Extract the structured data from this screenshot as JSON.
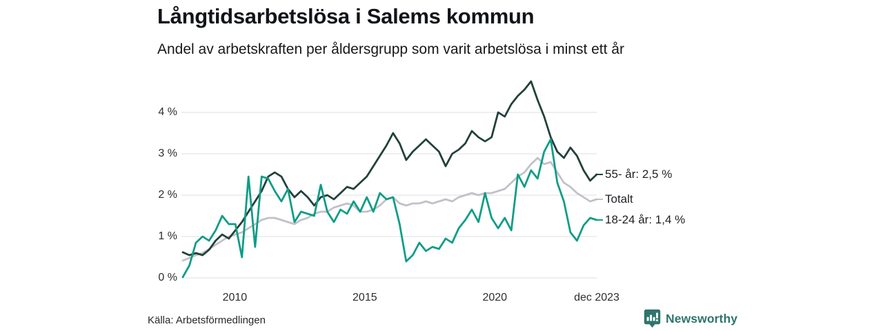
{
  "header": {
    "title": "Långtidsarbetslösa i Salems kommun",
    "subtitle": "Andel av arbetskraften per åldersgrupp som varit arbetslösa i minst ett år"
  },
  "footer": {
    "source": "Källa: Arbetsförmedlingen",
    "brand": "Newsworthy",
    "brand_color": "#2e756c"
  },
  "colors": {
    "background": "#ffffff",
    "grid": "#e5e3e8",
    "title_text": "#111418",
    "axis_text": "#2b2e31"
  },
  "chart_data": {
    "type": "line",
    "title": "Långtidsarbetslösa i Salems kommun",
    "subtitle": "Andel av arbetskraften per åldersgrupp som varit arbetslösa i minst ett år",
    "unit": "% av arbetskraften",
    "x_start": 2008.0,
    "x_end": 2023.92,
    "ylim": [
      0,
      4.9
    ],
    "grid": "horizontal",
    "legend_position": "right-of-line-ends",
    "yticks": [
      {
        "value": 0,
        "label": "0 %"
      },
      {
        "value": 1,
        "label": "1 %"
      },
      {
        "value": 2,
        "label": "2 %"
      },
      {
        "value": 3,
        "label": "3 %"
      },
      {
        "value": 4,
        "label": "4 %"
      }
    ],
    "xticks": [
      {
        "value": 2010,
        "label": "2010"
      },
      {
        "value": 2015,
        "label": "2015"
      },
      {
        "value": 2020,
        "label": "2020"
      },
      {
        "value": 2023.92,
        "label": "dec 2023"
      }
    ],
    "x_resolution": "quarterly",
    "series": [
      {
        "name": "Totalt",
        "label": "Totalt",
        "color": "#c2c0c8",
        "end_value": 1.9,
        "values": [
          0.42,
          0.48,
          0.55,
          0.6,
          0.7,
          0.8,
          0.9,
          1.0,
          1.05,
          1.1,
          1.2,
          1.3,
          1.4,
          1.45,
          1.45,
          1.4,
          1.35,
          1.3,
          1.4,
          1.45,
          1.55,
          1.6,
          1.6,
          1.7,
          1.75,
          1.8,
          1.75,
          1.6,
          1.6,
          1.65,
          1.75,
          1.9,
          1.95,
          1.8,
          1.75,
          1.8,
          1.8,
          1.85,
          1.8,
          1.85,
          1.9,
          1.85,
          1.95,
          2.0,
          2.05,
          2.0,
          2.05,
          2.05,
          2.1,
          2.15,
          2.3,
          2.45,
          2.55,
          2.75,
          2.9,
          2.75,
          2.8,
          2.55,
          2.3,
          2.2,
          2.05,
          1.95,
          1.85,
          1.9
        ]
      },
      {
        "name": "55- år",
        "label": "55- år: 2,5 %",
        "color": "#21413a",
        "end_value": 2.5,
        "values": [
          0.62,
          0.55,
          0.6,
          0.55,
          0.68,
          0.9,
          1.05,
          0.95,
          1.15,
          1.35,
          1.6,
          1.85,
          2.1,
          2.45,
          2.55,
          2.45,
          2.15,
          1.95,
          2.1,
          1.95,
          1.75,
          1.95,
          2.0,
          1.9,
          2.05,
          2.2,
          2.15,
          2.3,
          2.45,
          2.7,
          2.95,
          3.2,
          3.5,
          3.25,
          2.85,
          3.05,
          3.2,
          3.35,
          3.2,
          3.05,
          2.7,
          3.0,
          3.1,
          3.25,
          3.55,
          3.4,
          3.3,
          3.4,
          4.0,
          3.9,
          4.2,
          4.4,
          4.55,
          4.75,
          4.3,
          3.9,
          3.4,
          3.05,
          2.9,
          3.15,
          2.95,
          2.6,
          2.35,
          2.5
        ]
      },
      {
        "name": "18-24 år",
        "label": "18-24 år: 1,4 %",
        "color": "#0e9d86",
        "end_value": 1.4,
        "values": [
          0.02,
          0.3,
          0.85,
          1.0,
          0.9,
          1.15,
          1.5,
          1.3,
          1.3,
          0.5,
          2.45,
          0.75,
          2.45,
          2.4,
          2.1,
          1.85,
          2.15,
          1.35,
          1.6,
          1.55,
          1.5,
          2.25,
          1.6,
          1.35,
          1.65,
          1.55,
          1.85,
          1.6,
          1.95,
          1.6,
          2.05,
          1.9,
          1.95,
          1.3,
          0.4,
          0.55,
          0.85,
          0.65,
          0.75,
          0.7,
          0.95,
          0.85,
          1.2,
          1.4,
          1.65,
          1.35,
          2.05,
          1.45,
          1.2,
          1.45,
          1.15,
          2.5,
          2.2,
          2.6,
          2.4,
          3.05,
          3.35,
          2.3,
          1.85,
          1.1,
          0.9,
          1.27,
          1.45,
          1.4
        ]
      }
    ]
  }
}
